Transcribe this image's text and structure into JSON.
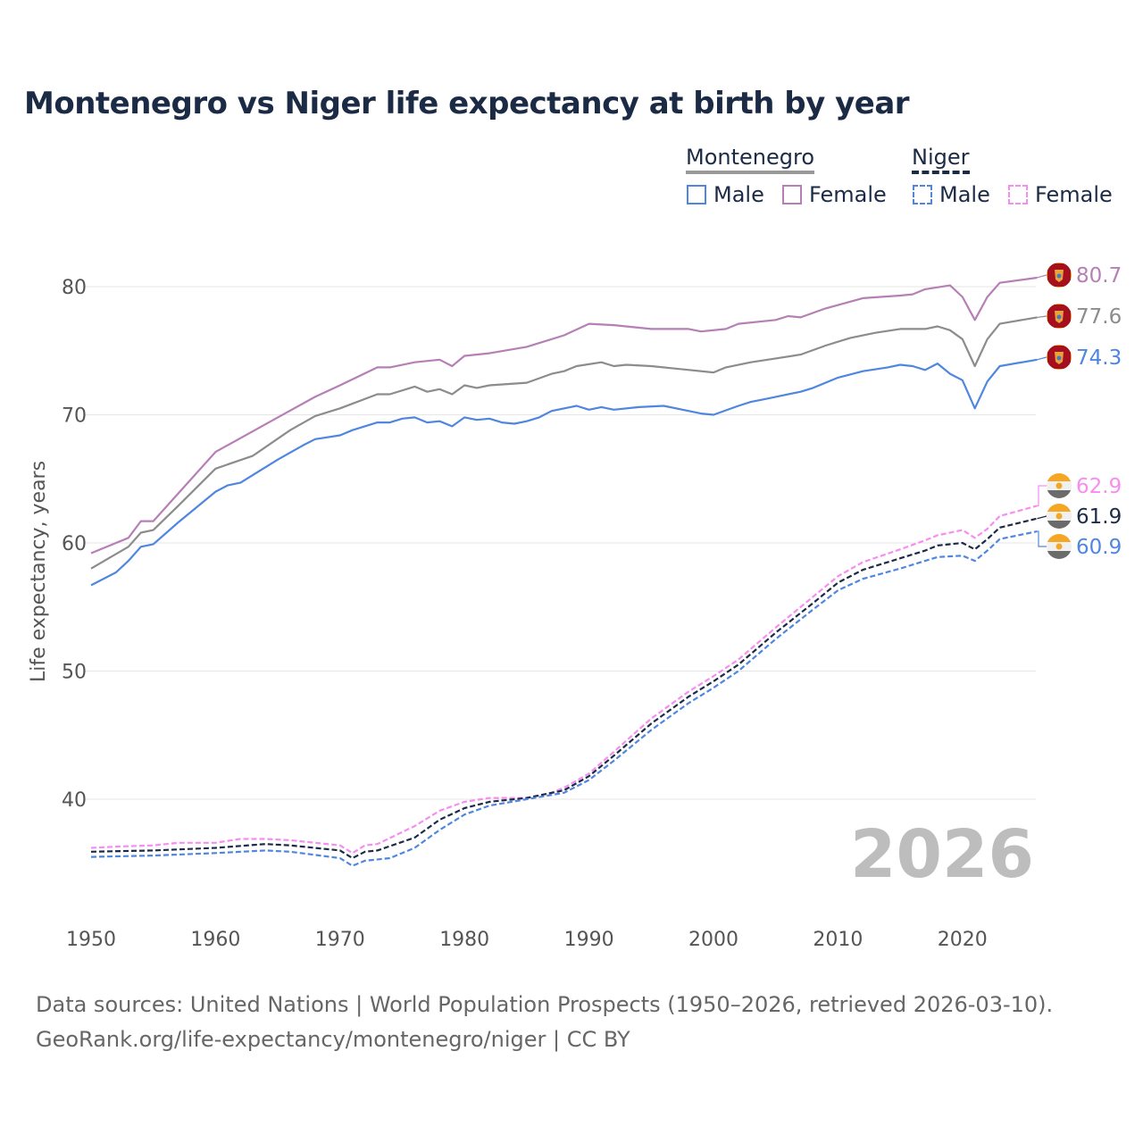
{
  "title": "Montenegro vs Niger life expectancy at birth by year",
  "legend": {
    "groups": [
      {
        "name": "Montenegro",
        "style": "solid",
        "color": "#999999"
      },
      {
        "name": "Niger",
        "style": "dashed",
        "color": "#1c2b45"
      }
    ],
    "items": [
      {
        "label": "Male",
        "group": "Montenegro",
        "color": "#4f86e0",
        "dashed": false
      },
      {
        "label": "Female",
        "group": "Montenegro",
        "color": "#b67fb5",
        "dashed": false
      },
      {
        "label": "Male",
        "group": "Niger",
        "color": "#4f86e0",
        "dashed": true
      },
      {
        "label": "Female",
        "group": "Niger",
        "color": "#f78df0",
        "dashed": true
      }
    ]
  },
  "year_watermark": "2026",
  "source_line1": "Data sources: United Nations | World Population Prospects (1950–2026, retrieved 2026-03-10).",
  "source_line2": "GeoRank.org/life-expectancy/montenegro/niger | CC BY",
  "chart_data": {
    "type": "line",
    "title": "Montenegro vs Niger life expectancy at birth by year",
    "xlabel": "",
    "ylabel": "Life expectancy, years",
    "xlim": [
      1950,
      2026
    ],
    "ylim": [
      33,
      84
    ],
    "xticks": [
      "1950",
      "1960",
      "1970",
      "1980",
      "1990",
      "2000",
      "2010",
      "2020"
    ],
    "yticks": [
      "40",
      "50",
      "60",
      "70",
      "80"
    ],
    "grid": true,
    "legend_position": "top-right",
    "series": [
      {
        "name": "Montenegro Female",
        "country": "montenegro",
        "color": "#b67fb5",
        "dashed": false,
        "end_label": "80.7",
        "points": [
          [
            1950,
            59.2
          ],
          [
            1953,
            60.4
          ],
          [
            1954,
            61.7
          ],
          [
            1955,
            61.7
          ],
          [
            1960,
            67.1
          ],
          [
            1965,
            69.8
          ],
          [
            1968,
            71.4
          ],
          [
            1970,
            72.3
          ],
          [
            1973,
            73.7
          ],
          [
            1974,
            73.7
          ],
          [
            1976,
            74.1
          ],
          [
            1978,
            74.3
          ],
          [
            1979,
            73.8
          ],
          [
            1980,
            74.6
          ],
          [
            1982,
            74.8
          ],
          [
            1985,
            75.3
          ],
          [
            1988,
            76.2
          ],
          [
            1990,
            77.1
          ],
          [
            1992,
            77.0
          ],
          [
            1995,
            76.7
          ],
          [
            1998,
            76.7
          ],
          [
            1999,
            76.5
          ],
          [
            2001,
            76.7
          ],
          [
            2002,
            77.1
          ],
          [
            2005,
            77.4
          ],
          [
            2006,
            77.7
          ],
          [
            2007,
            77.6
          ],
          [
            2009,
            78.3
          ],
          [
            2012,
            79.1
          ],
          [
            2015,
            79.3
          ],
          [
            2016,
            79.4
          ],
          [
            2017,
            79.8
          ],
          [
            2019,
            80.1
          ],
          [
            2020,
            79.2
          ],
          [
            2021,
            77.4
          ],
          [
            2022,
            79.2
          ],
          [
            2023,
            80.3
          ],
          [
            2026,
            80.7
          ]
        ]
      },
      {
        "name": "Montenegro Total",
        "country": "montenegro",
        "color": "#8c8c8c",
        "dashed": false,
        "end_label": "77.6",
        "points": [
          [
            1950,
            58.0
          ],
          [
            1953,
            59.7
          ],
          [
            1954,
            60.8
          ],
          [
            1955,
            61.0
          ],
          [
            1957,
            62.9
          ],
          [
            1960,
            65.8
          ],
          [
            1963,
            66.8
          ],
          [
            1966,
            68.8
          ],
          [
            1968,
            69.9
          ],
          [
            1970,
            70.5
          ],
          [
            1973,
            71.6
          ],
          [
            1974,
            71.6
          ],
          [
            1976,
            72.2
          ],
          [
            1977,
            71.8
          ],
          [
            1978,
            72.0
          ],
          [
            1979,
            71.6
          ],
          [
            1980,
            72.3
          ],
          [
            1981,
            72.1
          ],
          [
            1982,
            72.3
          ],
          [
            1985,
            72.5
          ],
          [
            1987,
            73.2
          ],
          [
            1988,
            73.4
          ],
          [
            1989,
            73.8
          ],
          [
            1991,
            74.1
          ],
          [
            1992,
            73.8
          ],
          [
            1993,
            73.9
          ],
          [
            1995,
            73.8
          ],
          [
            2000,
            73.3
          ],
          [
            2001,
            73.7
          ],
          [
            2003,
            74.1
          ],
          [
            2005,
            74.4
          ],
          [
            2007,
            74.7
          ],
          [
            2009,
            75.4
          ],
          [
            2011,
            76.0
          ],
          [
            2013,
            76.4
          ],
          [
            2015,
            76.7
          ],
          [
            2017,
            76.7
          ],
          [
            2018,
            76.9
          ],
          [
            2019,
            76.6
          ],
          [
            2020,
            75.9
          ],
          [
            2021,
            73.8
          ],
          [
            2022,
            75.9
          ],
          [
            2023,
            77.1
          ],
          [
            2026,
            77.6
          ]
        ]
      },
      {
        "name": "Montenegro Male",
        "country": "montenegro",
        "color": "#4f86e0",
        "dashed": false,
        "end_label": "74.3",
        "points": [
          [
            1950,
            56.7
          ],
          [
            1952,
            57.7
          ],
          [
            1953,
            58.6
          ],
          [
            1954,
            59.7
          ],
          [
            1955,
            59.9
          ],
          [
            1957,
            61.6
          ],
          [
            1960,
            64.0
          ],
          [
            1961,
            64.5
          ],
          [
            1962,
            64.7
          ],
          [
            1963,
            65.3
          ],
          [
            1965,
            66.5
          ],
          [
            1967,
            67.6
          ],
          [
            1968,
            68.1
          ],
          [
            1970,
            68.4
          ],
          [
            1971,
            68.8
          ],
          [
            1973,
            69.4
          ],
          [
            1974,
            69.4
          ],
          [
            1975,
            69.7
          ],
          [
            1976,
            69.8
          ],
          [
            1977,
            69.4
          ],
          [
            1978,
            69.5
          ],
          [
            1979,
            69.1
          ],
          [
            1980,
            69.8
          ],
          [
            1981,
            69.6
          ],
          [
            1982,
            69.7
          ],
          [
            1983,
            69.4
          ],
          [
            1984,
            69.3
          ],
          [
            1985,
            69.5
          ],
          [
            1986,
            69.8
          ],
          [
            1987,
            70.3
          ],
          [
            1989,
            70.7
          ],
          [
            1990,
            70.4
          ],
          [
            1991,
            70.6
          ],
          [
            1992,
            70.4
          ],
          [
            1994,
            70.6
          ],
          [
            1996,
            70.7
          ],
          [
            1998,
            70.3
          ],
          [
            1999,
            70.1
          ],
          [
            2000,
            70.0
          ],
          [
            2002,
            70.7
          ],
          [
            2003,
            71.0
          ],
          [
            2004,
            71.2
          ],
          [
            2005,
            71.4
          ],
          [
            2007,
            71.8
          ],
          [
            2008,
            72.1
          ],
          [
            2009,
            72.5
          ],
          [
            2010,
            72.9
          ],
          [
            2012,
            73.4
          ],
          [
            2014,
            73.7
          ],
          [
            2015,
            73.9
          ],
          [
            2016,
            73.8
          ],
          [
            2017,
            73.5
          ],
          [
            2018,
            74.0
          ],
          [
            2019,
            73.2
          ],
          [
            2020,
            72.7
          ],
          [
            2021,
            70.5
          ],
          [
            2022,
            72.6
          ],
          [
            2023,
            73.8
          ],
          [
            2026,
            74.3
          ]
        ]
      },
      {
        "name": "Niger Female",
        "country": "niger",
        "color": "#f78df0",
        "dashed": true,
        "end_label": "62.9",
        "points": [
          [
            1950,
            36.2
          ],
          [
            1952,
            36.3
          ],
          [
            1955,
            36.4
          ],
          [
            1957,
            36.6
          ],
          [
            1960,
            36.6
          ],
          [
            1962,
            36.9
          ],
          [
            1964,
            36.9
          ],
          [
            1966,
            36.8
          ],
          [
            1968,
            36.6
          ],
          [
            1970,
            36.4
          ],
          [
            1971,
            35.8
          ],
          [
            1972,
            36.4
          ],
          [
            1973,
            36.5
          ],
          [
            1976,
            37.9
          ],
          [
            1978,
            39.1
          ],
          [
            1980,
            39.8
          ],
          [
            1982,
            40.1
          ],
          [
            1985,
            40.1
          ],
          [
            1987,
            40.5
          ],
          [
            1988,
            40.9
          ],
          [
            1990,
            42.0
          ],
          [
            1992,
            43.7
          ],
          [
            1995,
            46.3
          ],
          [
            1998,
            48.4
          ],
          [
            2000,
            49.6
          ],
          [
            2002,
            50.9
          ],
          [
            2005,
            53.4
          ],
          [
            2008,
            55.8
          ],
          [
            2010,
            57.4
          ],
          [
            2012,
            58.5
          ],
          [
            2015,
            59.5
          ],
          [
            2017,
            60.2
          ],
          [
            2018,
            60.6
          ],
          [
            2020,
            61.0
          ],
          [
            2021,
            60.4
          ],
          [
            2022,
            61.1
          ],
          [
            2023,
            62.1
          ],
          [
            2026,
            62.9
          ]
        ]
      },
      {
        "name": "Niger Total",
        "country": "niger",
        "color": "#1c2b45",
        "dashed": true,
        "end_label": "61.9",
        "points": [
          [
            1950,
            35.9
          ],
          [
            1955,
            36.0
          ],
          [
            1960,
            36.2
          ],
          [
            1964,
            36.5
          ],
          [
            1966,
            36.4
          ],
          [
            1970,
            36.0
          ],
          [
            1971,
            35.4
          ],
          [
            1972,
            35.9
          ],
          [
            1973,
            36.0
          ],
          [
            1976,
            37.0
          ],
          [
            1978,
            38.4
          ],
          [
            1980,
            39.3
          ],
          [
            1982,
            39.8
          ],
          [
            1985,
            40.1
          ],
          [
            1988,
            40.7
          ],
          [
            1990,
            41.8
          ],
          [
            1992,
            43.4
          ],
          [
            1995,
            45.9
          ],
          [
            1998,
            48.0
          ],
          [
            2000,
            49.2
          ],
          [
            2002,
            50.5
          ],
          [
            2005,
            53.0
          ],
          [
            2008,
            55.3
          ],
          [
            2010,
            56.9
          ],
          [
            2012,
            57.9
          ],
          [
            2015,
            58.8
          ],
          [
            2017,
            59.4
          ],
          [
            2018,
            59.8
          ],
          [
            2020,
            60.0
          ],
          [
            2021,
            59.5
          ],
          [
            2022,
            60.3
          ],
          [
            2023,
            61.2
          ],
          [
            2026,
            61.9
          ]
        ]
      },
      {
        "name": "Niger Male",
        "country": "niger",
        "color": "#4f86e0",
        "dashed": true,
        "end_label": "60.9",
        "points": [
          [
            1950,
            35.5
          ],
          [
            1955,
            35.6
          ],
          [
            1960,
            35.8
          ],
          [
            1964,
            36.0
          ],
          [
            1966,
            35.9
          ],
          [
            1970,
            35.4
          ],
          [
            1971,
            34.8
          ],
          [
            1972,
            35.2
          ],
          [
            1974,
            35.4
          ],
          [
            1976,
            36.2
          ],
          [
            1978,
            37.6
          ],
          [
            1980,
            38.8
          ],
          [
            1982,
            39.5
          ],
          [
            1985,
            40.0
          ],
          [
            1988,
            40.5
          ],
          [
            1990,
            41.5
          ],
          [
            1992,
            43.0
          ],
          [
            1995,
            45.4
          ],
          [
            1998,
            47.5
          ],
          [
            2000,
            48.7
          ],
          [
            2002,
            50.0
          ],
          [
            2005,
            52.5
          ],
          [
            2008,
            54.8
          ],
          [
            2010,
            56.3
          ],
          [
            2012,
            57.2
          ],
          [
            2015,
            58.0
          ],
          [
            2017,
            58.6
          ],
          [
            2018,
            58.9
          ],
          [
            2020,
            59.0
          ],
          [
            2021,
            58.6
          ],
          [
            2022,
            59.4
          ],
          [
            2023,
            60.3
          ],
          [
            2026,
            60.9
          ]
        ]
      }
    ]
  }
}
